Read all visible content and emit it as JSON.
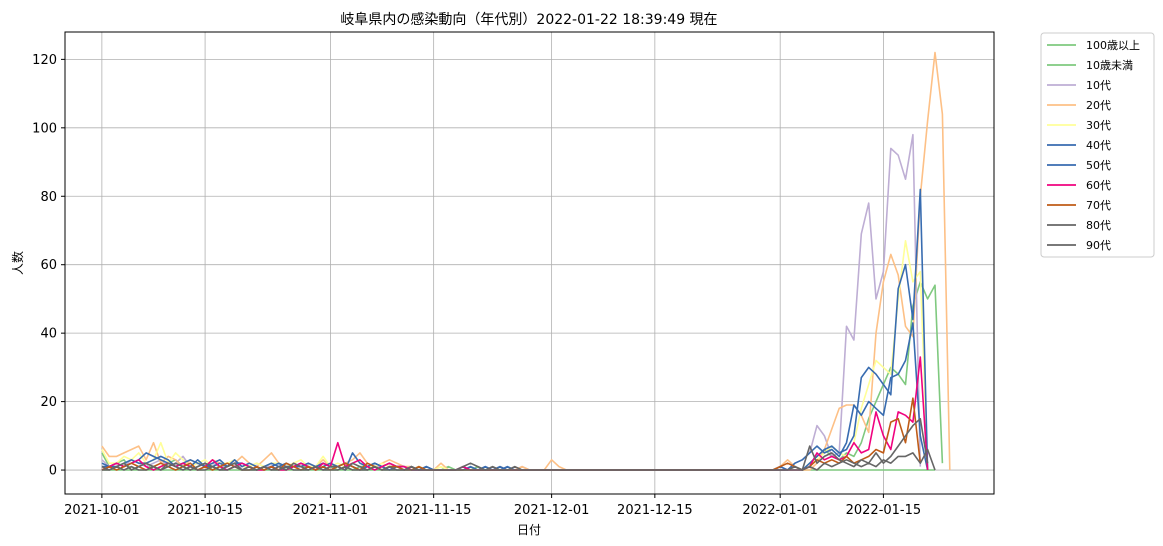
{
  "chart_data": {
    "type": "line",
    "title": "岐阜県内の感染動向（年代別）2022-01-22 18:39:49 現在",
    "xlabel": "日付",
    "ylabel": "人数",
    "ylim": [
      -7,
      128
    ],
    "yticks": [
      0,
      20,
      40,
      60,
      80,
      100,
      120
    ],
    "x_start": "2021-10-01",
    "x_end": "2022-01-22",
    "xlim": [
      "2021-09-26",
      "2022-01-30"
    ],
    "xticks": [
      "2021-10-01",
      "2021-10-15",
      "2021-11-01",
      "2021-11-15",
      "2021-12-01",
      "2021-12-15",
      "2022-01-01",
      "2022-01-15"
    ],
    "grid": true,
    "legend_position": "outside-top-right",
    "series": [
      {
        "name": "100歳以上",
        "color": "#7fc97f",
        "values": [
          0,
          0,
          0,
          0,
          0,
          0,
          0,
          0,
          0,
          0,
          0,
          0,
          0,
          0,
          0,
          0,
          0,
          0,
          0,
          0,
          0,
          0,
          0,
          0,
          0,
          0,
          0,
          0,
          0,
          0,
          0,
          0,
          0,
          0,
          0,
          0,
          0,
          0,
          0,
          0,
          0,
          0,
          0,
          0,
          0,
          0,
          0,
          0,
          0,
          0,
          0,
          0,
          0,
          0,
          0,
          0,
          0,
          0,
          0,
          0,
          0,
          0,
          0,
          0,
          0,
          0,
          0,
          0,
          0,
          0,
          0,
          0,
          0,
          0,
          0,
          0,
          0,
          0,
          0,
          0,
          0,
          0,
          0,
          0,
          0,
          0,
          0,
          0,
          0,
          0,
          0,
          0,
          0,
          0,
          0,
          0,
          0,
          0,
          0,
          0,
          0,
          0,
          0,
          0,
          0,
          0,
          0,
          0,
          0,
          0,
          0,
          0,
          0,
          0
        ]
      },
      {
        "name": "10歳未満",
        "color": "#7fc97f",
        "values": [
          5,
          1,
          2,
          3,
          0,
          1,
          2,
          0,
          1,
          2,
          3,
          1,
          0,
          1,
          2,
          0,
          1,
          1,
          2,
          0,
          1,
          0,
          1,
          1,
          2,
          0,
          1,
          1,
          1,
          0,
          2,
          1,
          0,
          1,
          0,
          1,
          1,
          2,
          1,
          0,
          1,
          1,
          0,
          1,
          0,
          0,
          0,
          1,
          0,
          0,
          0,
          1,
          0,
          0,
          0,
          0,
          0,
          0,
          0,
          0,
          0,
          0,
          0,
          0,
          0,
          0,
          0,
          0,
          0,
          0,
          0,
          0,
          0,
          0,
          0,
          0,
          0,
          0,
          0,
          0,
          0,
          0,
          0,
          0,
          0,
          0,
          0,
          0,
          0,
          0,
          0,
          0,
          0,
          0,
          1,
          0,
          2,
          4,
          6,
          4,
          3,
          5,
          4,
          8,
          15,
          20,
          25,
          30,
          28,
          25,
          48,
          55,
          50,
          54,
          2
        ]
      },
      {
        "name": "10代",
        "color": "#beaed4",
        "values": [
          3,
          1,
          2,
          1,
          3,
          2,
          1,
          2,
          3,
          1,
          2,
          4,
          1,
          2,
          1,
          2,
          1,
          1,
          3,
          0,
          1,
          2,
          1,
          1,
          2,
          0,
          1,
          2,
          1,
          1,
          2,
          1,
          1,
          2,
          1,
          0,
          1,
          1,
          1,
          0,
          1,
          0,
          1,
          0,
          0,
          0,
          0,
          0,
          0,
          0,
          0,
          0,
          1,
          0,
          0,
          0,
          0,
          1,
          0,
          0,
          0,
          0,
          0,
          0,
          0,
          0,
          0,
          0,
          0,
          0,
          0,
          0,
          0,
          0,
          0,
          0,
          0,
          0,
          0,
          0,
          0,
          0,
          0,
          0,
          0,
          0,
          0,
          0,
          0,
          0,
          0,
          0,
          1,
          0,
          2,
          3,
          5,
          13,
          10,
          4,
          5,
          42,
          38,
          69,
          78,
          50,
          58,
          94,
          92,
          85,
          98,
          1
        ]
      },
      {
        "name": "20代",
        "color": "#fdc086",
        "values": [
          7,
          4,
          4,
          5,
          6,
          7,
          3,
          8,
          2,
          4,
          3,
          1,
          3,
          2,
          1,
          3,
          2,
          1,
          2,
          4,
          2,
          1,
          3,
          5,
          2,
          1,
          2,
          1,
          2,
          1,
          3,
          1,
          1,
          2,
          3,
          5,
          2,
          1,
          2,
          3,
          2,
          1,
          1,
          0,
          1,
          0,
          2,
          0,
          0,
          1,
          0,
          0,
          0,
          0,
          1,
          0,
          0,
          1,
          0,
          0,
          0,
          3,
          1,
          0,
          0,
          0,
          0,
          0,
          0,
          0,
          0,
          0,
          0,
          0,
          0,
          0,
          0,
          0,
          0,
          0,
          0,
          0,
          0,
          0,
          0,
          0,
          0,
          0,
          0,
          0,
          0,
          0,
          1,
          3,
          1,
          0,
          0,
          2,
          6,
          12,
          18,
          19,
          19,
          16,
          11,
          40,
          55,
          63,
          57,
          42,
          39,
          80,
          102,
          122,
          104,
          0
        ]
      },
      {
        "name": "30代",
        "color": "#ffff99",
        "values": [
          6,
          2,
          2,
          4,
          3,
          5,
          2,
          3,
          8,
          2,
          5,
          3,
          1,
          2,
          3,
          1,
          2,
          2,
          3,
          1,
          1,
          2,
          1,
          2,
          2,
          1,
          2,
          3,
          1,
          1,
          4,
          1,
          2,
          1,
          2,
          3,
          1,
          1,
          2,
          1,
          1,
          1,
          0,
          1,
          0,
          0,
          1,
          0,
          0,
          0,
          0,
          0,
          0,
          0,
          0,
          0,
          0,
          0,
          0,
          0,
          0,
          0,
          0,
          0,
          0,
          0,
          0,
          0,
          0,
          0,
          0,
          0,
          0,
          0,
          0,
          0,
          0,
          0,
          0,
          0,
          0,
          0,
          0,
          0,
          0,
          0,
          0,
          0,
          0,
          0,
          0,
          0,
          0,
          0,
          1,
          0,
          2,
          3,
          5,
          7,
          5,
          4,
          8,
          18,
          25,
          32,
          30,
          28,
          50,
          67,
          55,
          58,
          0
        ]
      },
      {
        "name": "40代",
        "color": "#386cb0",
        "values": [
          2,
          1,
          1,
          2,
          3,
          2,
          2,
          3,
          4,
          3,
          1,
          2,
          3,
          2,
          1,
          2,
          3,
          1,
          2,
          2,
          1,
          0,
          1,
          2,
          1,
          2,
          1,
          1,
          2,
          1,
          2,
          1,
          1,
          2,
          1,
          0,
          1,
          2,
          1,
          0,
          1,
          1,
          0,
          0,
          1,
          0,
          0,
          0,
          0,
          0,
          1,
          0,
          0,
          0,
          0,
          1,
          0,
          0,
          0,
          0,
          0,
          0,
          0,
          0,
          0,
          0,
          0,
          0,
          0,
          0,
          0,
          0,
          0,
          0,
          0,
          0,
          0,
          0,
          0,
          0,
          0,
          0,
          0,
          0,
          0,
          0,
          0,
          0,
          0,
          0,
          0,
          0,
          0,
          0,
          1,
          0,
          2,
          4,
          6,
          7,
          5,
          6,
          10,
          27,
          30,
          28,
          25,
          22,
          53,
          60,
          44,
          82,
          0
        ]
      },
      {
        "name": "50代",
        "color": "#386cb0",
        "values": [
          1,
          1,
          2,
          1,
          2,
          3,
          5,
          4,
          3,
          2,
          1,
          2,
          1,
          3,
          1,
          1,
          2,
          1,
          3,
          1,
          2,
          1,
          0,
          1,
          2,
          1,
          1,
          2,
          1,
          0,
          1,
          2,
          1,
          0,
          5,
          2,
          1,
          2,
          1,
          2,
          1,
          0,
          1,
          0,
          1,
          0,
          0,
          0,
          0,
          1,
          0,
          0,
          1,
          0,
          1,
          0,
          0,
          0,
          0,
          0,
          0,
          0,
          0,
          0,
          0,
          0,
          0,
          0,
          0,
          0,
          0,
          0,
          0,
          0,
          0,
          0,
          0,
          0,
          0,
          0,
          0,
          0,
          0,
          0,
          0,
          0,
          0,
          0,
          0,
          0,
          0,
          0,
          1,
          0,
          2,
          3,
          5,
          7,
          5,
          6,
          4,
          8,
          19,
          16,
          20,
          18,
          16,
          27,
          28,
          32,
          43,
          10,
          0
        ]
      },
      {
        "name": "60代",
        "color": "#f0027f",
        "values": [
          0,
          1,
          2,
          1,
          2,
          3,
          1,
          0,
          1,
          2,
          1,
          2,
          1,
          0,
          1,
          3,
          1,
          0,
          1,
          2,
          1,
          0,
          0,
          1,
          0,
          0,
          1,
          2,
          1,
          0,
          2,
          1,
          8,
          1,
          2,
          3,
          1,
          0,
          1,
          2,
          1,
          1,
          0,
          0,
          0,
          0,
          0,
          0,
          0,
          1,
          0,
          0,
          0,
          0,
          0,
          0,
          0,
          0,
          0,
          0,
          0,
          0,
          0,
          0,
          0,
          0,
          0,
          0,
          0,
          0,
          0,
          0,
          0,
          0,
          0,
          0,
          0,
          0,
          0,
          0,
          0,
          0,
          0,
          0,
          0,
          0,
          0,
          0,
          0,
          0,
          0,
          0,
          0,
          0,
          0,
          0,
          1,
          5,
          3,
          4,
          3,
          4,
          8,
          5,
          6,
          17,
          10,
          6,
          17,
          16,
          14,
          33,
          0
        ]
      },
      {
        "name": "70代",
        "color": "#bf5b17",
        "values": [
          0,
          1,
          0,
          1,
          2,
          1,
          0,
          1,
          2,
          1,
          0,
          1,
          2,
          0,
          1,
          0,
          1,
          2,
          1,
          0,
          0,
          1,
          0,
          1,
          0,
          2,
          1,
          0,
          1,
          0,
          1,
          0,
          1,
          2,
          1,
          0,
          2,
          1,
          0,
          1,
          1,
          0,
          0,
          1,
          0,
          0,
          0,
          0,
          0,
          0,
          0,
          0,
          0,
          0,
          0,
          0,
          0,
          0,
          0,
          0,
          0,
          0,
          0,
          0,
          0,
          0,
          0,
          0,
          0,
          0,
          0,
          0,
          0,
          0,
          0,
          0,
          0,
          0,
          0,
          0,
          0,
          0,
          0,
          0,
          0,
          0,
          0,
          0,
          0,
          0,
          0,
          0,
          1,
          2,
          1,
          0,
          1,
          3,
          2,
          3,
          2,
          4,
          2,
          3,
          4,
          6,
          5,
          14,
          15,
          8,
          21,
          2
        ]
      },
      {
        "name": "80代",
        "color": "#666666",
        "values": [
          1,
          0,
          1,
          2,
          0,
          1,
          2,
          1,
          0,
          1,
          2,
          1,
          0,
          1,
          2,
          1,
          0,
          1,
          2,
          0,
          1,
          0,
          1,
          0,
          1,
          0,
          2,
          1,
          0,
          1,
          0,
          1,
          1,
          0,
          2,
          1,
          0,
          1,
          0,
          1,
          0,
          0,
          1,
          0,
          0,
          0,
          0,
          0,
          0,
          1,
          2,
          1,
          0,
          1,
          0,
          0,
          1,
          0,
          0,
          0,
          0,
          0,
          0,
          0,
          0,
          0,
          0,
          0,
          0,
          0,
          0,
          0,
          0,
          0,
          0,
          0,
          0,
          0,
          0,
          0,
          0,
          0,
          0,
          0,
          0,
          0,
          0,
          0,
          0,
          0,
          0,
          0,
          0,
          0,
          1,
          0,
          7,
          2,
          4,
          5,
          3,
          2,
          1,
          3,
          2,
          5,
          2,
          4,
          7,
          10,
          13,
          15,
          2
        ]
      },
      {
        "name": "90代",
        "color": "#666666",
        "values": [
          0,
          0,
          1,
          0,
          1,
          0,
          0,
          1,
          0,
          2,
          1,
          0,
          1,
          0,
          0,
          1,
          0,
          0,
          1,
          0,
          0,
          0,
          1,
          0,
          0,
          1,
          0,
          0,
          0,
          1,
          0,
          0,
          0,
          1,
          0,
          0,
          0,
          1,
          0,
          0,
          0,
          0,
          0,
          0,
          0,
          0,
          0,
          0,
          0,
          0,
          0,
          0,
          0,
          0,
          0,
          0,
          0,
          0,
          0,
          0,
          0,
          0,
          0,
          0,
          0,
          0,
          0,
          0,
          0,
          0,
          0,
          0,
          0,
          0,
          0,
          0,
          0,
          0,
          0,
          0,
          0,
          0,
          0,
          0,
          0,
          0,
          0,
          0,
          0,
          0,
          0,
          0,
          0,
          0,
          0,
          0,
          1,
          0,
          2,
          1,
          2,
          3,
          2,
          1,
          2,
          1,
          3,
          2,
          4,
          4,
          5,
          2,
          6,
          0
        ]
      }
    ]
  }
}
